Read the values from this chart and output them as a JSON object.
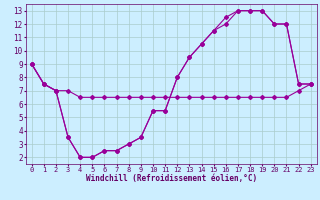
{
  "xlabel": "Windchill (Refroidissement éolien,°C)",
  "line_color": "#990099",
  "bg_color": "#cceeff",
  "grid_color": "#aacccc",
  "xlim": [
    -0.5,
    23.5
  ],
  "ylim": [
    1.5,
    13.5
  ],
  "xticks": [
    0,
    1,
    2,
    3,
    4,
    5,
    6,
    7,
    8,
    9,
    10,
    11,
    12,
    13,
    14,
    15,
    16,
    17,
    18,
    19,
    20,
    21,
    22,
    23
  ],
  "yticks": [
    2,
    3,
    4,
    5,
    6,
    7,
    8,
    9,
    10,
    11,
    12,
    13
  ],
  "line1_x": [
    0,
    1,
    2,
    3,
    4,
    5,
    6,
    7,
    8,
    9,
    10,
    11,
    12,
    13,
    14,
    15,
    16,
    17,
    18,
    19,
    20,
    21,
    22,
    23
  ],
  "line1_y": [
    9,
    7.5,
    7,
    3.5,
    2,
    2,
    2.5,
    2.5,
    3,
    3.5,
    5.5,
    5.5,
    8,
    9.5,
    10.5,
    11.5,
    12.5,
    13,
    13,
    13,
    12,
    12,
    7.5,
    7.5
  ],
  "line2_x": [
    0,
    1,
    2,
    3,
    4,
    5,
    6,
    7,
    8,
    9,
    10,
    11,
    12,
    13,
    14,
    15,
    16,
    17,
    18,
    19,
    20,
    21,
    22,
    23
  ],
  "line2_y": [
    9,
    7.5,
    7,
    3.5,
    2,
    2,
    2.5,
    2.5,
    3,
    3.5,
    5.5,
    5.5,
    8,
    9.5,
    10.5,
    11.5,
    12,
    13,
    13,
    13,
    12,
    12,
    7.5,
    7.5
  ],
  "line3_x": [
    0,
    1,
    2,
    3,
    4,
    5,
    6,
    7,
    8,
    9,
    10,
    11,
    12,
    13,
    14,
    15,
    16,
    17,
    18,
    19,
    20,
    21,
    22,
    23
  ],
  "line3_y": [
    9,
    7.5,
    7,
    7,
    6.5,
    6.5,
    6.5,
    6.5,
    6.5,
    6.5,
    6.5,
    6.5,
    6.5,
    6.5,
    6.5,
    6.5,
    6.5,
    6.5,
    6.5,
    6.5,
    6.5,
    6.5,
    7,
    7.5
  ],
  "tick_color": "#660066",
  "xlabel_fontsize": 5.5,
  "tick_fontsize": 5.0
}
